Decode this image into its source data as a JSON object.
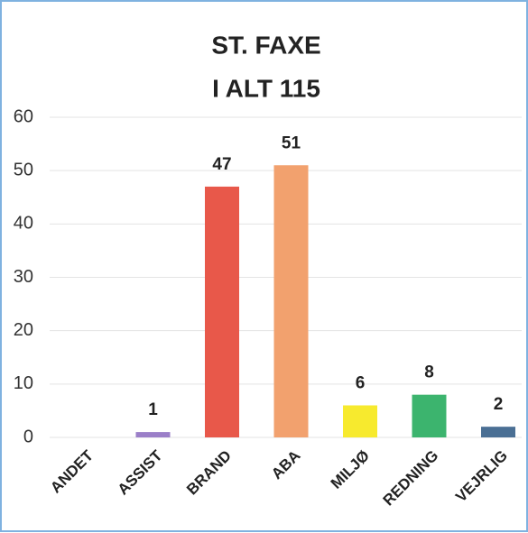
{
  "chart_data": {
    "type": "bar",
    "title": [
      "ST. FAXE",
      "I ALT 115"
    ],
    "categories": [
      "ANDET",
      "ASSIST",
      "BRAND",
      "ABA",
      "MILJØ",
      "REDNING",
      "VEJRLIG"
    ],
    "values": [
      0,
      1,
      47,
      51,
      6,
      8,
      2
    ],
    "colors": [
      "#9b7fc8",
      "#9b7fc8",
      "#e8584a",
      "#f2a16e",
      "#f7ea2e",
      "#3cb46e",
      "#4a6f94"
    ],
    "ylim": [
      0,
      60
    ],
    "yticks": [
      0,
      10,
      20,
      30,
      40,
      50,
      60
    ],
    "grid": true
  }
}
